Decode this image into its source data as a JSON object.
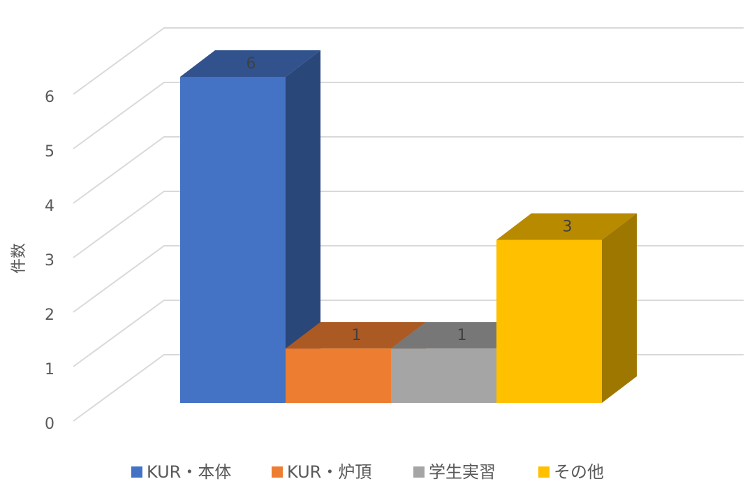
{
  "chart_data": {
    "type": "bar3d",
    "y_label": "件数",
    "categories": [
      null
    ],
    "series": [
      {
        "name": "KUR・本体",
        "color": "#4472c4",
        "values": [
          6
        ]
      },
      {
        "name": "KUR・炉頂",
        "color": "#ed7d31",
        "values": [
          1
        ]
      },
      {
        "name": "学生実習",
        "color": "#a5a5a5",
        "values": [
          1
        ]
      },
      {
        "name": "その他",
        "color": "#ffc000",
        "values": [
          3
        ]
      }
    ],
    "ylim": [
      0,
      6
    ],
    "yticks": [
      0,
      1,
      2,
      3,
      4,
      5,
      6
    ],
    "grid": true,
    "legend": "bottom",
    "data_labels": true
  }
}
